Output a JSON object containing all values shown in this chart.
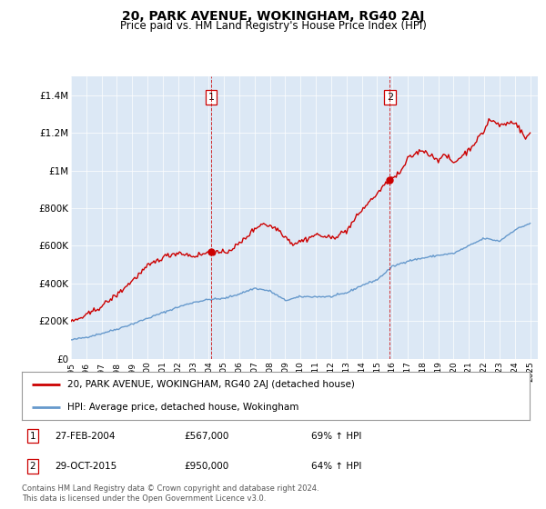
{
  "title": "20, PARK AVENUE, WOKINGHAM, RG40 2AJ",
  "subtitle": "Price paid vs. HM Land Registry's House Price Index (HPI)",
  "ylim": [
    0,
    1500000
  ],
  "yticks": [
    0,
    200000,
    400000,
    600000,
    800000,
    1000000,
    1200000,
    1400000
  ],
  "ytick_labels": [
    "£0",
    "£200K",
    "£400K",
    "£600K",
    "£800K",
    "£1M",
    "£1.2M",
    "£1.4M"
  ],
  "plot_bg_color": "#dce8f5",
  "sale1_yr": 2004.15,
  "sale1_price": 567000,
  "sale2_yr": 2015.83,
  "sale2_price": 950000,
  "legend_label_red": "20, PARK AVENUE, WOKINGHAM, RG40 2AJ (detached house)",
  "legend_label_blue": "HPI: Average price, detached house, Wokingham",
  "annotation1_date": "27-FEB-2004",
  "annotation1_price": "£567,000",
  "annotation1_hpi": "69% ↑ HPI",
  "annotation2_date": "29-OCT-2015",
  "annotation2_price": "£950,000",
  "annotation2_hpi": "64% ↑ HPI",
  "footer": "Contains HM Land Registry data © Crown copyright and database right 2024.\nThis data is licensed under the Open Government Licence v3.0.",
  "red_color": "#cc0000",
  "blue_color": "#6699cc",
  "hpi_years": [
    1995,
    1996,
    1997,
    1998,
    1999,
    2000,
    2001,
    2002,
    2003,
    2004,
    2005,
    2006,
    2007,
    2008,
    2009,
    2010,
    2011,
    2012,
    2013,
    2014,
    2015,
    2016,
    2017,
    2018,
    2019,
    2020,
    2021,
    2022,
    2023,
    2024,
    2025
  ],
  "hpi_prices": [
    100000,
    115000,
    135000,
    158000,
    185000,
    215000,
    245000,
    275000,
    300000,
    315000,
    320000,
    345000,
    375000,
    360000,
    310000,
    330000,
    330000,
    330000,
    350000,
    390000,
    420000,
    490000,
    520000,
    535000,
    550000,
    560000,
    600000,
    640000,
    625000,
    685000,
    720000
  ],
  "red_years": [
    1995.0,
    1996.0,
    1997.0,
    1998.0,
    1999.0,
    2000.0,
    2001.0,
    2002.0,
    2003.0,
    2004.15,
    2005.0,
    2006.0,
    2007.0,
    2007.5,
    2008.5,
    2009.5,
    2010.5,
    2011.0,
    2012.0,
    2013.0,
    2014.0,
    2015.83,
    2016.5,
    2017.0,
    2017.5,
    2018.0,
    2018.5,
    2019.0,
    2019.5,
    2020.0,
    2021.0,
    2022.0,
    2022.3,
    2022.6,
    2023.0,
    2024.0,
    2024.7,
    2025.0
  ],
  "red_prices": [
    195000,
    230000,
    280000,
    340000,
    415000,
    490000,
    540000,
    565000,
    545000,
    567000,
    560000,
    610000,
    690000,
    720000,
    690000,
    610000,
    640000,
    660000,
    640000,
    680000,
    790000,
    950000,
    985000,
    1060000,
    1090000,
    1110000,
    1080000,
    1060000,
    1080000,
    1040000,
    1110000,
    1210000,
    1270000,
    1260000,
    1240000,
    1260000,
    1170000,
    1200000
  ]
}
